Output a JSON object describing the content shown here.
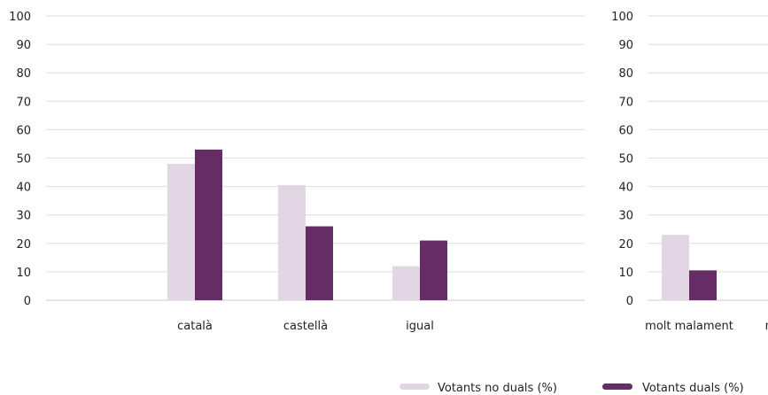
{
  "colors": {
    "no_duals": "#e2d6e4",
    "duals": "#662c66",
    "grid": "#dddddd",
    "text": "#222222"
  },
  "legend": [
    {
      "label": "Votants no duals (%)",
      "color": "#e2d6e4"
    },
    {
      "label": "Votants duals (%)",
      "color": "#662c66"
    }
  ],
  "chart_data": [
    {
      "type": "bar",
      "categories": [
        "català",
        "castellà",
        "igual"
      ],
      "series": [
        {
          "name": "Votants no duals (%)",
          "values": [
            48,
            40.5,
            12
          ]
        },
        {
          "name": "Votants duals (%)",
          "values": [
            53,
            26,
            21
          ]
        }
      ],
      "ylim": [
        0,
        100
      ],
      "yticks": [
        0,
        10,
        20,
        30,
        40,
        50,
        60,
        70,
        80,
        90,
        100
      ],
      "grid": true
    },
    {
      "type": "bar",
      "categories": [
        "molt malament",
        "m"
      ],
      "series": [
        {
          "name": "Votants no duals (%)",
          "values": [
            23,
            null
          ]
        },
        {
          "name": "Votants duals (%)",
          "values": [
            10.5,
            null
          ]
        }
      ],
      "ylim": [
        0,
        100
      ],
      "yticks": [
        0,
        10,
        20,
        30,
        40,
        50,
        60,
        70,
        80,
        90,
        100
      ],
      "grid": true,
      "legend_position": "bottom-right"
    }
  ]
}
